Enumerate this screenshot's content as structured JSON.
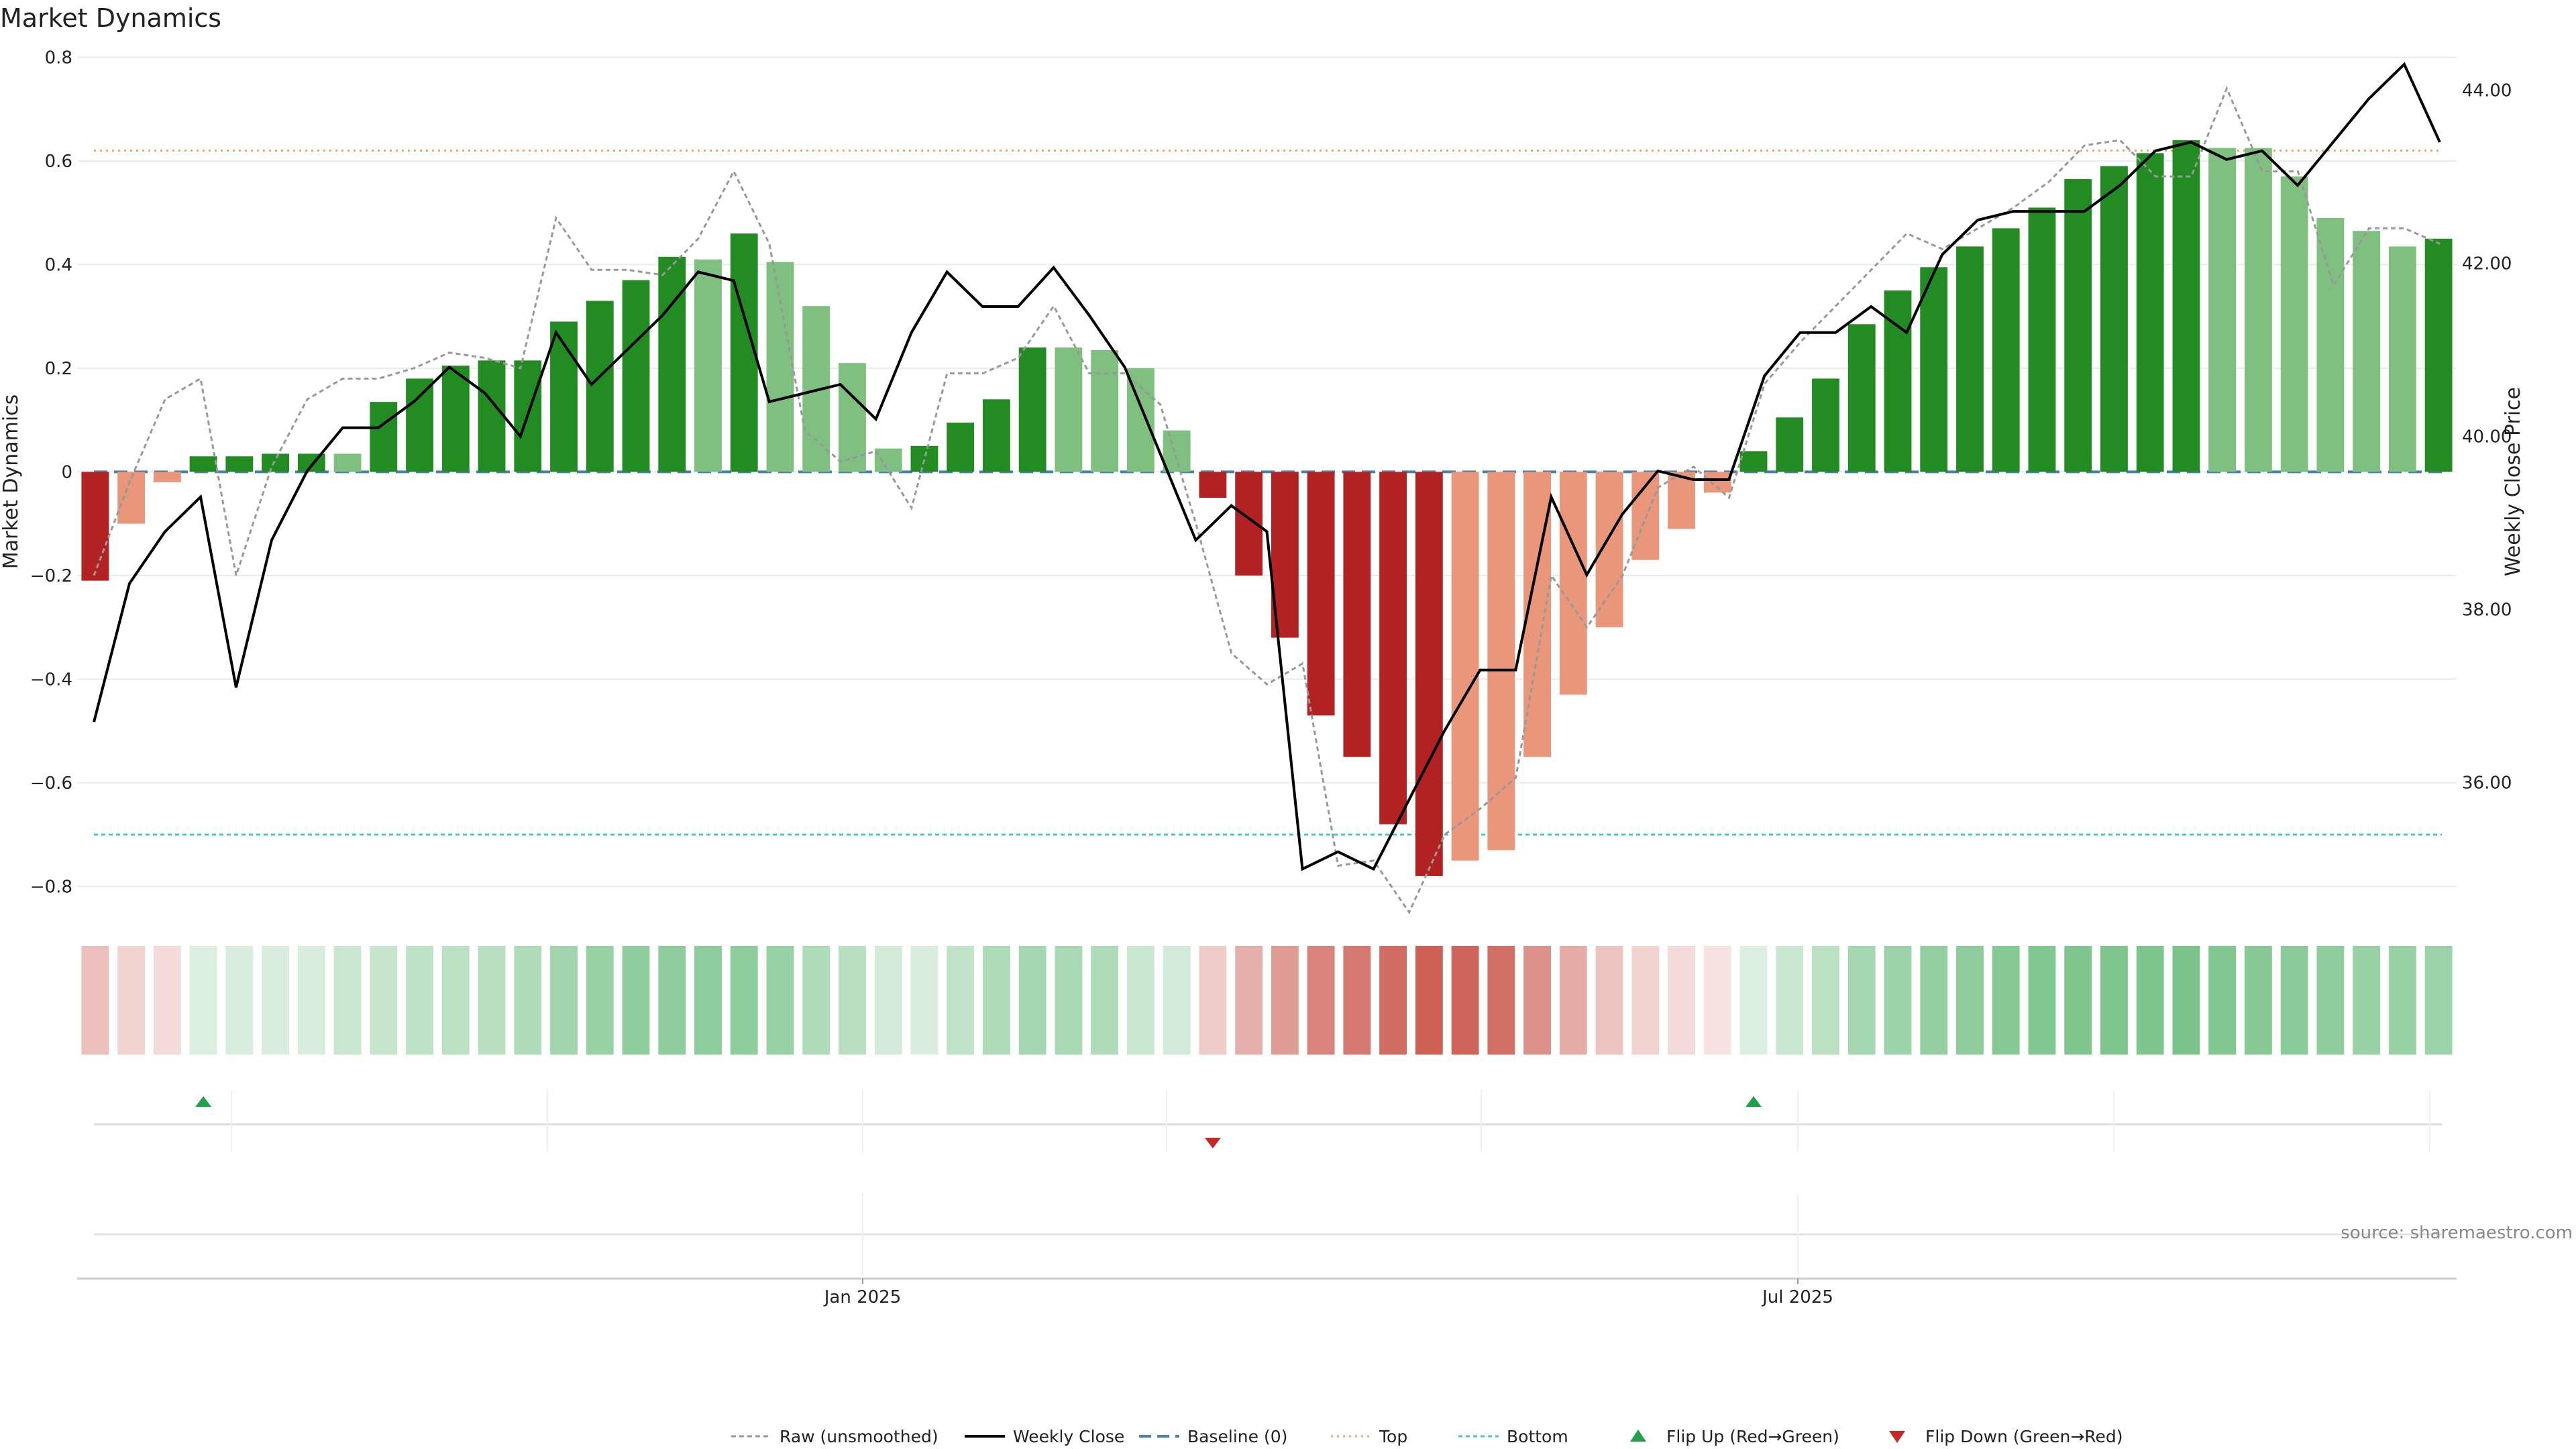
{
  "title": "Market Dynamics",
  "source": "source: sharemaestro.com",
  "chart_data": {
    "type": "bar",
    "x_ticks": [
      "Jan 2025",
      "Jul 2025"
    ],
    "left_axis": {
      "label": "Market Dynamics",
      "ylim": [
        -0.85,
        0.82
      ],
      "ticks": [
        0.8,
        0.6,
        0.4,
        0.2,
        0,
        -0.2,
        -0.4,
        -0.6,
        -0.8
      ],
      "tick_labels": [
        "0.8",
        "0.6",
        "0.4",
        "0.2",
        "0",
        "−0.2",
        "−0.4",
        "−0.6",
        "−0.8"
      ]
    },
    "right_axis": {
      "label": "Weekly Close Price",
      "ylim": [
        34.5,
        44.5
      ],
      "ticks": [
        44,
        42,
        40,
        38,
        36
      ],
      "tick_labels": [
        "44.00",
        "42.00",
        "40.00",
        "38.00",
        "36.00"
      ]
    },
    "reference_lines": {
      "top": 0.62,
      "bottom": -0.7,
      "baseline": 0
    },
    "bars": [
      -0.21,
      -0.1,
      -0.02,
      0.03,
      0.03,
      0.035,
      0.035,
      0.035,
      0.135,
      0.18,
      0.205,
      0.215,
      0.215,
      0.29,
      0.33,
      0.37,
      0.415,
      0.41,
      0.46,
      0.405,
      0.32,
      0.21,
      0.045,
      0.05,
      0.095,
      0.14,
      0.24,
      0.24,
      0.235,
      0.2,
      0.08,
      -0.05,
      -0.2,
      -0.32,
      -0.47,
      -0.55,
      -0.68,
      -0.78,
      -0.75,
      -0.73,
      -0.55,
      -0.43,
      -0.3,
      -0.17,
      -0.11,
      -0.04,
      0.04,
      0.105,
      0.18,
      0.285,
      0.35,
      0.395,
      0.435,
      0.47,
      0.51,
      0.565,
      0.59,
      0.615,
      0.64,
      0.625,
      0.625,
      0.57,
      0.49,
      0.465,
      0.435,
      0.45
    ],
    "bar_states": [
      "dark-red",
      "light-red",
      "light-red",
      "dark-green",
      "dark-green",
      "dark-green",
      "dark-green",
      "light-green",
      "dark-green",
      "dark-green",
      "dark-green",
      "dark-green",
      "dark-green",
      "dark-green",
      "dark-green",
      "dark-green",
      "dark-green",
      "light-green",
      "dark-green",
      "light-green",
      "light-green",
      "light-green",
      "light-green",
      "dark-green",
      "dark-green",
      "dark-green",
      "dark-green",
      "light-green",
      "light-green",
      "light-green",
      "light-green",
      "dark-red",
      "dark-red",
      "dark-red",
      "dark-red",
      "dark-red",
      "dark-red",
      "dark-red",
      "light-red",
      "light-red",
      "light-red",
      "light-red",
      "light-red",
      "light-red",
      "light-red",
      "light-red",
      "dark-green",
      "dark-green",
      "dark-green",
      "dark-green",
      "dark-green",
      "dark-green",
      "dark-green",
      "dark-green",
      "dark-green",
      "dark-green",
      "dark-green",
      "dark-green",
      "dark-green",
      "light-green",
      "light-green",
      "light-green",
      "light-green",
      "light-green",
      "light-green",
      "dark-green"
    ],
    "series": [
      {
        "name": "Raw (unsmoothed)",
        "axis": "left",
        "values": [
          -0.2,
          -0.02,
          0.14,
          0.18,
          -0.2,
          0.01,
          0.14,
          0.18,
          0.18,
          0.2,
          0.23,
          0.22,
          0.2,
          0.49,
          0.39,
          0.39,
          0.38,
          0.45,
          0.58,
          0.44,
          0.08,
          0.02,
          0.04,
          -0.07,
          0.19,
          0.19,
          0.22,
          0.32,
          0.19,
          0.19,
          0.13,
          -0.1,
          -0.35,
          -0.41,
          -0.37,
          -0.76,
          -0.75,
          -0.85,
          -0.7,
          -0.65,
          -0.59,
          -0.2,
          -0.3,
          -0.2,
          -0.03,
          0.01,
          -0.05,
          0.17,
          0.25,
          0.32,
          0.39,
          0.46,
          0.43,
          0.47,
          0.51,
          0.56,
          0.63,
          0.64,
          0.57,
          0.57,
          0.74,
          0.58,
          0.58,
          0.36,
          0.47,
          0.47,
          0.44
        ]
      },
      {
        "name": "Weekly Close",
        "axis": "right",
        "values": [
          36.7,
          38.3,
          38.9,
          39.3,
          37.1,
          38.8,
          39.6,
          40.1,
          40.1,
          40.4,
          40.8,
          40.5,
          40.0,
          41.2,
          40.6,
          41.0,
          41.4,
          41.9,
          41.8,
          40.4,
          40.5,
          40.6,
          40.2,
          41.2,
          41.9,
          41.5,
          41.5,
          41.95,
          41.4,
          40.8,
          39.8,
          38.8,
          39.2,
          38.9,
          35.0,
          35.2,
          35.0,
          35.8,
          36.6,
          37.3,
          37.3,
          39.3,
          38.4,
          39.1,
          39.6,
          39.5,
          39.5,
          40.7,
          41.2,
          41.2,
          41.5,
          41.2,
          42.1,
          42.5,
          42.6,
          42.6,
          42.6,
          42.9,
          43.3,
          43.4,
          43.2,
          43.3,
          42.9,
          43.4,
          43.9,
          44.3,
          43.4
        ]
      },
      {
        "name": "Baseline (0)"
      },
      {
        "name": "Top"
      },
      {
        "name": "Bottom"
      },
      {
        "name": "Flip Up (Red→Green)"
      },
      {
        "name": "Flip Down (Green→Red)"
      }
    ],
    "heat_strip": [
      0.32,
      0.22,
      0.18,
      0.2,
      0.22,
      0.22,
      0.22,
      0.3,
      0.32,
      0.36,
      0.38,
      0.4,
      0.45,
      0.52,
      0.58,
      0.62,
      0.63,
      0.64,
      0.64,
      0.58,
      0.45,
      0.4,
      0.25,
      0.22,
      0.35,
      0.45,
      0.5,
      0.48,
      0.45,
      0.3,
      0.25,
      0.26,
      0.4,
      0.5,
      0.62,
      0.68,
      0.74,
      0.8,
      0.78,
      0.72,
      0.55,
      0.42,
      0.3,
      0.22,
      0.18,
      0.14,
      0.2,
      0.3,
      0.38,
      0.5,
      0.55,
      0.6,
      0.63,
      0.68,
      0.7,
      0.72,
      0.72,
      0.73,
      0.74,
      0.7,
      0.68,
      0.66,
      0.62,
      0.58,
      0.58,
      0.56
    ],
    "flip_up_index": [
      3,
      46
    ],
    "flip_down_index": [
      31
    ],
    "colors": {
      "dark_green": "#228B22",
      "light_green": "#7FBF7F",
      "dark_red": "#B22222",
      "light_red": "#E9967A",
      "weekly_close": "#000000",
      "raw": "#999999",
      "baseline": "#4682B4",
      "top": "#F4A460",
      "bottom": "#48C9C9",
      "flip_up": "#22A04A",
      "flip_down": "#C62828"
    },
    "grid": true,
    "legend_placement": "bottom-center"
  }
}
